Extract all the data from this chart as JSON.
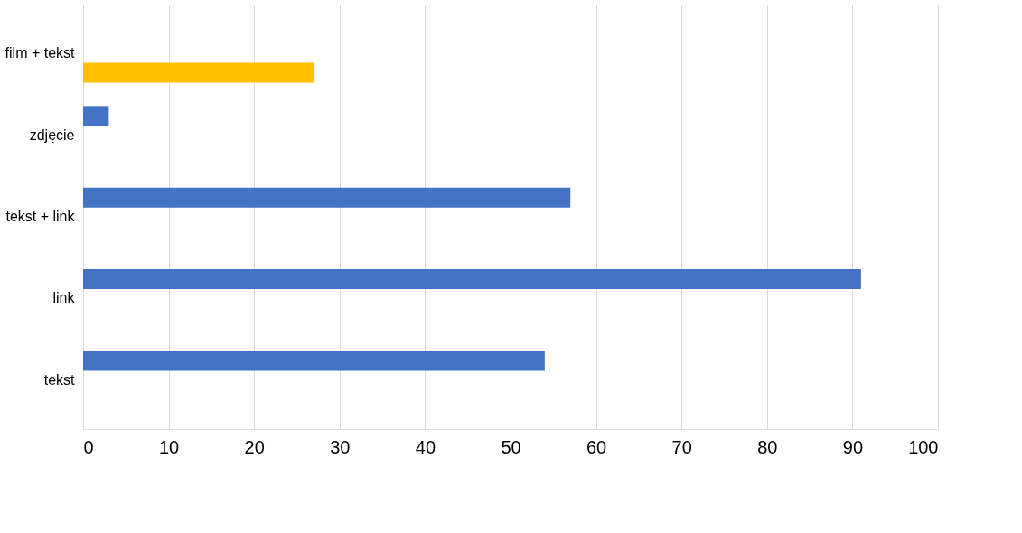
{
  "chart_data": {
    "type": "bar",
    "orientation": "horizontal",
    "categories": [
      "film + tekst",
      "zdjęcie",
      "tekst + link",
      "link",
      "tekst"
    ],
    "series": [
      {
        "color": "#4472c4",
        "values": [
          null,
          3,
          57,
          91,
          54
        ]
      },
      {
        "color": "#ffc000",
        "values": [
          27,
          null,
          null,
          null,
          null
        ]
      }
    ],
    "xlim": [
      0,
      100
    ],
    "xticks": [
      0,
      10,
      20,
      30,
      40,
      50,
      60,
      70,
      80,
      90,
      100
    ],
    "grid": "x"
  }
}
